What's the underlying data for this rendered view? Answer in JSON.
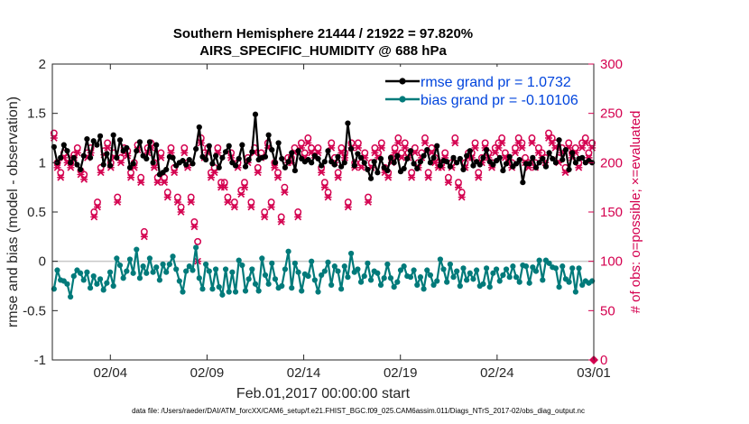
{
  "chart_data": {
    "type": "line",
    "title_line1": "Southern Hemisphere 21444 / 21922 = 97.820%",
    "title_line2": "AIRS_SPECIFIC_HUMIDITY @ 688 hPa",
    "xlabel": "Feb.01,2017 00:00:00 start",
    "ylabel_left": "rmse and bias (model - observation)",
    "ylabel_right": "# of obs: o=possible; ×=evaluated",
    "ylim_left": [
      -1,
      2
    ],
    "ylim_right": [
      0,
      300
    ],
    "xlim_days": [
      1.0,
      29.0
    ],
    "x_ticks": [
      {
        "day": 4,
        "label": "02/04"
      },
      {
        "day": 9,
        "label": "02/09"
      },
      {
        "day": 14,
        "label": "02/14"
      },
      {
        "day": 19,
        "label": "02/19"
      },
      {
        "day": 24,
        "label": "02/24"
      },
      {
        "day": 29,
        "label": "03/01"
      }
    ],
    "y_ticks_left": [
      {
        "value": 2,
        "label": "2"
      },
      {
        "value": 1.5,
        "label": "1.5"
      },
      {
        "value": 1,
        "label": "1"
      },
      {
        "value": 0.5,
        "label": "0.5"
      },
      {
        "value": 0,
        "label": "0"
      },
      {
        "value": -0.5,
        "label": "-0.5"
      },
      {
        "value": -1,
        "label": "-1"
      }
    ],
    "y_ticks_right": [
      {
        "value": 300,
        "label": "300"
      },
      {
        "value": 250,
        "label": "250"
      },
      {
        "value": 200,
        "label": "200"
      },
      {
        "value": 150,
        "label": "150"
      },
      {
        "value": 100,
        "label": "100"
      },
      {
        "value": 50,
        "label": "50"
      },
      {
        "value": 0,
        "label": "0"
      }
    ],
    "series": [
      {
        "name": "rmse grand pr = 1.0732",
        "color": "#000000",
        "values": [
          1.16,
          1.0,
          1.05,
          1.18,
          1.12,
          1.0,
          1.05,
          0.98,
          0.93,
          1.07,
          1.24,
          1.05,
          1.22,
          1.18,
          1.27,
          0.98,
          1.09,
          0.97,
          1.28,
          1.05,
          1.23,
          1.12,
          1.15,
          0.95,
          0.99,
          1.12,
          1.21,
          1.07,
          1.04,
          1.21,
          1.0,
          1.18,
          0.88,
          0.9,
          0.93,
          1.06,
          1.05,
          0.97,
          1.0,
          1.02,
          0.98,
          1.03,
          0.99,
          1.14,
          1.36,
          1.06,
          1.03,
          1.17,
          0.99,
          1.07,
          0.95,
          1.05,
          1.11,
          1.17,
          1.0,
          0.97,
          1.04,
          1.18,
          0.96,
          1.03,
          1.11,
          1.49,
          1.03,
          1.05,
          1.06,
          1.28,
          1.13,
          1.0,
          1.2,
          1.04,
          0.95,
          1.01,
          1.1,
          0.92,
          1.12,
          1.04,
          1.01,
          1.03,
          1.0,
          1.07,
          1.04,
          0.97,
          1.01,
          1.12,
          1.01,
          0.98,
          1.06,
          0.96,
          1.0,
          1.4,
          1.14,
          0.97,
          1.09,
          1.05,
          1.0,
          0.93,
          0.84,
          1.01,
          0.9,
          1.04,
          0.95,
          0.92,
          1.05,
          1.0,
          1.07,
          0.91,
          0.94,
          1.04,
          1.12,
          0.99,
          0.94,
          1.01,
          1.07,
          1.13,
          1.0,
          1.05,
          1.17,
          0.97,
          1.02,
          1.01,
          0.96,
          1.05,
          1.0,
          1.04,
          0.93,
          1.07,
          1.12,
          0.97,
          1.01,
          0.98,
          1.05,
          1.13,
          1.01,
          0.98,
          1.02,
          1.05,
          0.92,
          0.99,
          1.06,
          0.96,
          0.99,
          1.03,
          0.8,
          0.99,
          0.99,
          1.05,
          0.95,
          1.0,
          1.04,
          0.96,
          1.1,
          1.04,
          1.0,
          1.23,
          1.03,
          1.13,
          0.93,
          1.1,
          1.0,
          1.04,
          1.05,
          1.0,
          1.02,
          1.0
        ]
      },
      {
        "name": "bias grand pr = -0.10106",
        "color": "#007a7a",
        "values": [
          -0.28,
          -0.09,
          -0.19,
          -0.2,
          -0.23,
          -0.36,
          -0.15,
          -0.09,
          -0.12,
          -0.19,
          -0.11,
          -0.27,
          -0.15,
          -0.23,
          -0.18,
          -0.29,
          -0.22,
          -0.11,
          -0.25,
          0.03,
          -0.04,
          -0.17,
          -0.1,
          0.02,
          -0.12,
          0.12,
          -0.17,
          -0.05,
          -0.12,
          0.03,
          -0.11,
          -0.06,
          -0.19,
          -0.03,
          -0.11,
          -0.03,
          0.05,
          -0.08,
          -0.2,
          -0.31,
          -0.1,
          -0.05,
          -0.09,
          0.14,
          -0.17,
          -0.28,
          -0.03,
          -0.1,
          -0.28,
          -0.08,
          -0.26,
          -0.34,
          -0.08,
          -0.31,
          -0.11,
          -0.31,
          0.01,
          -0.04,
          -0.3,
          -0.18,
          -0.08,
          -0.23,
          -0.3,
          0.03,
          -0.14,
          -0.23,
          -0.02,
          -0.18,
          -0.27,
          -0.25,
          -0.08,
          0.1,
          -0.27,
          -0.02,
          -0.11,
          -0.3,
          -0.13,
          -0.15,
          0.0,
          -0.19,
          -0.31,
          -0.14,
          -0.1,
          -0.01,
          -0.24,
          -0.05,
          -0.1,
          -0.28,
          -0.05,
          -0.16,
          0.08,
          -0.11,
          -0.08,
          -0.21,
          -0.15,
          -0.02,
          -0.19,
          -0.1,
          -0.12,
          -0.24,
          -0.17,
          -0.03,
          -0.17,
          -0.26,
          -0.21,
          -0.09,
          -0.05,
          -0.15,
          -0.16,
          -0.09,
          -0.24,
          -0.16,
          -0.28,
          -0.09,
          -0.14,
          -0.24,
          -0.2,
          0.02,
          -0.08,
          -0.21,
          -0.03,
          -0.16,
          -0.1,
          -0.25,
          -0.07,
          -0.19,
          -0.12,
          -0.18,
          -0.09,
          -0.25,
          -0.23,
          -0.07,
          -0.26,
          -0.12,
          -0.08,
          -0.2,
          -0.14,
          -0.08,
          -0.16,
          -0.05,
          -0.16,
          -0.21,
          -0.04,
          -0.05,
          -0.22,
          -0.06,
          -0.1,
          0.01,
          -0.19,
          0.01,
          -0.02,
          -0.06,
          -0.07,
          -0.26,
          -0.05,
          -0.18,
          -0.21,
          -0.07,
          -0.31,
          -0.07,
          -0.24,
          -0.2,
          -0.22,
          -0.2
        ]
      }
    ],
    "obs_counts": {
      "color": "#d4004f",
      "values": [
        230,
        200,
        190,
        210,
        205,
        200,
        208,
        215,
        192,
        188,
        210,
        215,
        150,
        160,
        195,
        212,
        220,
        200,
        210,
        165,
        205,
        215,
        212,
        190,
        200,
        218,
        185,
        130,
        215,
        220,
        200,
        185,
        210,
        185,
        170,
        215,
        195,
        165,
        155,
        215,
        200,
        165,
        140,
        120,
        225,
        210,
        215,
        190,
        195,
        215,
        180,
        180,
        165,
        210,
        160,
        200,
        172,
        180,
        205,
        160,
        215,
        195,
        210,
        150,
        220,
        160,
        200,
        190,
        145,
        175,
        205,
        205,
        215,
        150,
        220,
        210,
        225,
        215,
        210,
        215,
        195,
        180,
        170,
        220,
        205,
        190,
        215,
        210,
        160,
        220,
        200,
        220,
        200,
        210,
        165,
        200,
        215,
        210,
        220,
        195,
        190,
        205,
        215,
        225,
        210,
        220,
        210,
        190,
        215,
        200,
        210,
        225,
        190,
        215,
        205,
        200,
        200,
        210,
        185,
        200,
        225,
        180,
        170,
        200,
        210,
        210,
        220,
        190,
        205,
        220,
        210,
        200,
        215,
        220,
        225,
        210,
        205,
        200,
        215,
        225,
        220,
        205,
        200,
        225,
        200,
        215,
        210,
        205,
        230,
        225,
        220,
        205,
        215,
        195,
        220,
        210,
        215,
        200,
        220,
        225,
        210,
        220
      ],
      "evaluated_values": [
        225,
        195,
        185,
        205,
        200,
        195,
        205,
        210,
        188,
        183,
        205,
        210,
        145,
        155,
        190,
        208,
        215,
        195,
        205,
        160,
        200,
        210,
        207,
        185,
        195,
        213,
        180,
        125,
        210,
        215,
        195,
        180,
        205,
        180,
        165,
        210,
        190,
        160,
        150,
        210,
        195,
        160,
        135,
        100,
        220,
        205,
        210,
        185,
        190,
        210,
        175,
        175,
        160,
        205,
        155,
        195,
        168,
        175,
        200,
        155,
        210,
        190,
        205,
        145,
        215,
        155,
        195,
        185,
        140,
        170,
        200,
        200,
        210,
        145,
        215,
        205,
        220,
        210,
        205,
        210,
        190,
        175,
        165,
        215,
        200,
        185,
        210,
        205,
        155,
        215,
        195,
        215,
        195,
        205,
        160,
        195,
        210,
        205,
        215,
        190,
        185,
        200,
        210,
        220,
        205,
        215,
        205,
        185,
        210,
        195,
        205,
        220,
        185,
        210,
        200,
        195,
        195,
        205,
        180,
        195,
        220,
        175,
        165,
        195,
        205,
        205,
        215,
        185,
        200,
        215,
        205,
        195,
        210,
        215,
        220,
        205,
        200,
        195,
        210,
        220,
        215,
        200,
        195,
        220,
        195,
        210,
        205,
        200,
        225,
        220,
        215,
        200,
        210,
        190,
        215,
        205,
        210,
        195,
        215,
        220,
        205,
        215
      ]
    },
    "legend_position": "top-right"
  },
  "footer": "data file: /Users/raeder/DAI/ATM_forcXX/CAM6_setup/f.e21.FHIST_BGC.f09_025.CAM6assim.011/Diags_NTrS_2017-02/obs_diag_output.nc",
  "colors": {
    "rmse": "#000000",
    "bias": "#007a7a",
    "obs": "#d4004f",
    "zero_line": "#c8c8c8"
  }
}
